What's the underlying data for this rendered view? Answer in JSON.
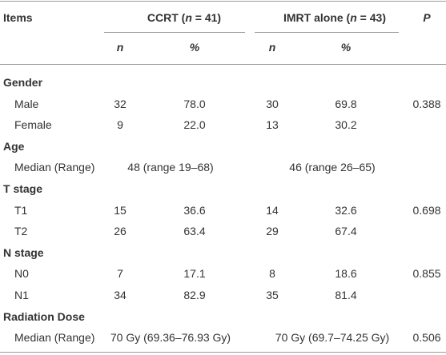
{
  "header": {
    "items": "Items",
    "groups": [
      {
        "parts": [
          "CCRT (",
          "n",
          " = 41)"
        ]
      },
      {
        "parts": [
          "IMRT alone (",
          "n",
          " = 43)"
        ]
      }
    ],
    "p": "P",
    "sub": [
      "n",
      "%",
      "n",
      "%"
    ]
  },
  "sections": [
    {
      "title": "Gender",
      "rows": [
        {
          "label": "Male",
          "cells": [
            "32",
            "78.0",
            "30",
            "69.8"
          ],
          "p": "0.388"
        },
        {
          "label": "Female",
          "cells": [
            "9",
            "22.0",
            "13",
            "30.2"
          ]
        }
      ]
    },
    {
      "title": "Age",
      "rows": [
        {
          "label": "Median (Range)",
          "spans": [
            "48 (range 19–68)",
            "46 (range 26–65)"
          ]
        }
      ]
    },
    {
      "title": "T stage",
      "rows": [
        {
          "label": "T1",
          "cells": [
            "15",
            "36.6",
            "14",
            "32.6"
          ],
          "p": "0.698"
        },
        {
          "label": "T2",
          "cells": [
            "26",
            "63.4",
            "29",
            "67.4"
          ]
        }
      ]
    },
    {
      "title": "N stage",
      "rows": [
        {
          "label": "N0",
          "cells": [
            "7",
            "17.1",
            "8",
            "18.6"
          ],
          "p": "0.855"
        },
        {
          "label": "N1",
          "cells": [
            "34",
            "82.9",
            "35",
            "81.4"
          ]
        }
      ]
    },
    {
      "title": "Radiation Dose",
      "rows": [
        {
          "label": "Median (Range)",
          "spans": [
            "70 Gy (69.36–76.93 Gy)",
            "70 Gy (69.7–74.25 Gy)"
          ],
          "p": "0.506"
        }
      ]
    }
  ]
}
